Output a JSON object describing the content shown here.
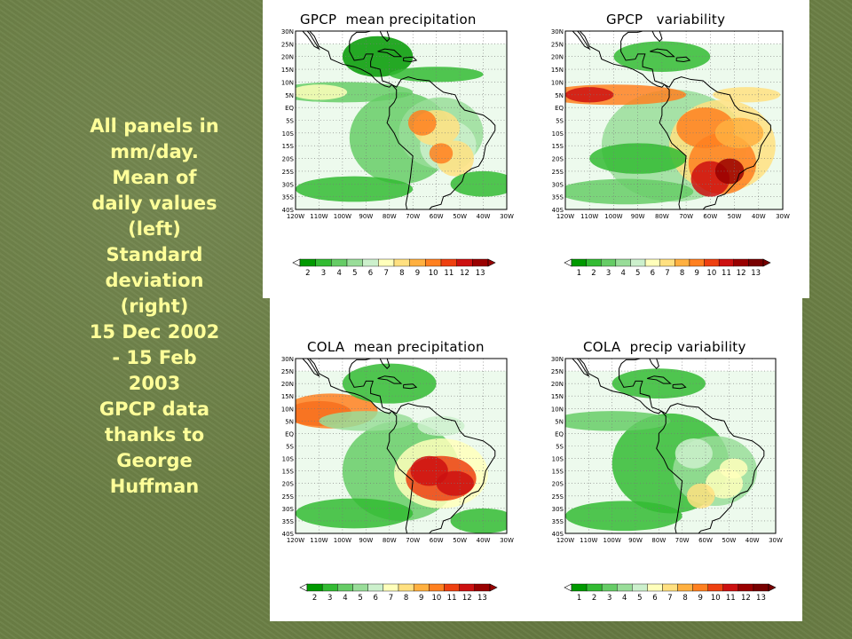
{
  "caption": {
    "lines": [
      "All panels in",
      "mm/day.",
      "Mean of",
      "daily values",
      "(left)",
      "Standard",
      "deviation",
      "(right)",
      "15 Dec 2002",
      "-  15 Feb",
      "2003",
      "GPCP data",
      "thanks to",
      "George",
      "Huffman"
    ]
  },
  "panels": [
    {
      "title": "GPCP  mean precipitation",
      "colorbar_labels": [
        "2",
        "3",
        "4",
        "5",
        "6",
        "7",
        "8",
        "9",
        "10",
        "11",
        "12",
        "13"
      ],
      "colors": [
        "#009900",
        "#33bb33",
        "#66cc66",
        "#99dd99",
        "#ccf0cc",
        "#ffffbb",
        "#ffe080",
        "#ffb040",
        "#ff8020",
        "#ee4010",
        "#cc1010",
        "#990000"
      ]
    },
    {
      "title": "GPCP   variability",
      "colorbar_labels": [
        "1",
        "2",
        "3",
        "4",
        "5",
        "6",
        "7",
        "8",
        "9",
        "10",
        "11",
        "12",
        "13"
      ],
      "colors": [
        "#009900",
        "#33bb33",
        "#66cc66",
        "#99dd99",
        "#ccf0cc",
        "#ffffbb",
        "#ffe080",
        "#ffb040",
        "#ff8020",
        "#ee4010",
        "#cc1010",
        "#990000",
        "#770000"
      ]
    },
    {
      "title": "COLA  mean precipitation",
      "colorbar_labels": [
        "2",
        "3",
        "4",
        "5",
        "6",
        "7",
        "8",
        "9",
        "10",
        "11",
        "12",
        "13"
      ],
      "colors": [
        "#009900",
        "#33bb33",
        "#66cc66",
        "#99dd99",
        "#ccf0cc",
        "#ffffbb",
        "#ffe080",
        "#ffb040",
        "#ff8020",
        "#ee4010",
        "#cc1010",
        "#990000"
      ]
    },
    {
      "title": "COLA  precip variability",
      "colorbar_labels": [
        "1",
        "2",
        "3",
        "4",
        "5",
        "6",
        "7",
        "8",
        "9",
        "10",
        "11",
        "12",
        "13"
      ],
      "colors": [
        "#009900",
        "#33bb33",
        "#66cc66",
        "#99dd99",
        "#ccf0cc",
        "#ffffbb",
        "#ffe080",
        "#ffb040",
        "#ff8020",
        "#ee4010",
        "#cc1010",
        "#990000",
        "#770000"
      ]
    }
  ],
  "map_axes": {
    "lat_labels": [
      "30N",
      "25N",
      "20N",
      "15N",
      "10N",
      "5N",
      "EQ",
      "5S",
      "10S",
      "15S",
      "20S",
      "25S",
      "30S",
      "35S",
      "40S"
    ],
    "lon_labels": [
      "120W",
      "110W",
      "100W",
      "90W",
      "80W",
      "70W",
      "60W",
      "50W",
      "40W",
      "30W"
    ]
  }
}
